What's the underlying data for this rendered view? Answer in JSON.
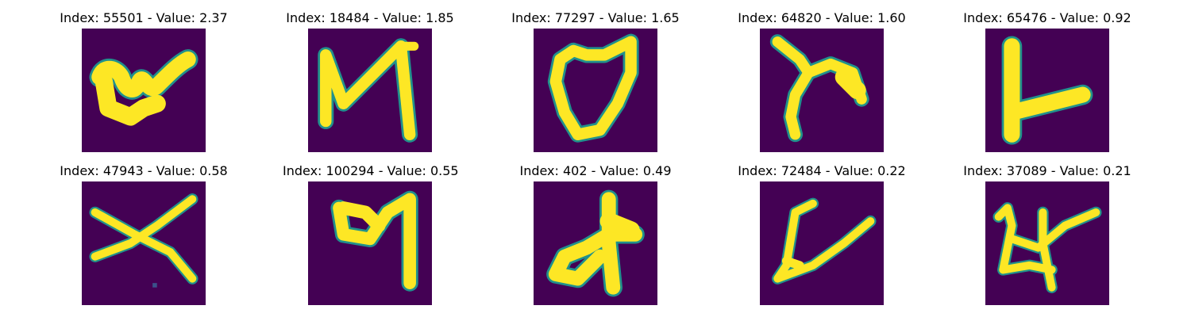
{
  "colors": {
    "background": "#440154",
    "stroke": "#fde725",
    "edge": "#21918c",
    "edge_light": "#5ec962"
  },
  "panels": [
    {
      "title": "Index: 55501 - Value: 2.37"
    },
    {
      "title": "Index: 18484 - Value: 1.85"
    },
    {
      "title": "Index: 77297 - Value: 1.65"
    },
    {
      "title": "Index: 64820 - Value: 1.60"
    },
    {
      "title": "Index: 65476 - Value: 0.92"
    },
    {
      "title": "Index: 47943 - Value: 0.58"
    },
    {
      "title": "Index: 100294 - Value: 0.55"
    },
    {
      "title": "Index: 402 - Value: 0.49"
    },
    {
      "title": "Index: 72484 - Value: 0.22"
    },
    {
      "title": "Index: 37089 - Value: 0.21"
    }
  ]
}
